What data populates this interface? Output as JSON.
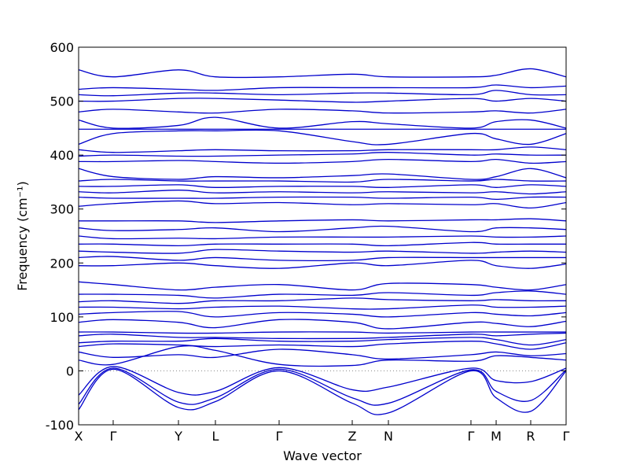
{
  "chart_data": {
    "type": "line",
    "title": "",
    "xlabel": "Wave vector",
    "ylabel": "Frequency (cm⁻¹)",
    "ylim": [
      -100,
      600
    ],
    "yticks": [
      -100,
      0,
      100,
      200,
      300,
      400,
      500,
      600
    ],
    "x_path_labels": [
      {
        "label": "X",
        "x": 0.0
      },
      {
        "label": "Γ",
        "x": 0.0709
      },
      {
        "label": "Y",
        "x": 0.2048
      },
      {
        "label": "L",
        "x": 0.2806
      },
      {
        "label": "Γ",
        "x": 0.4113
      },
      {
        "label": "Z",
        "x": 0.5613
      },
      {
        "label": "N",
        "x": 0.6355
      },
      {
        "label": "Γ",
        "x": 0.8048
      },
      {
        "label": "M",
        "x": 0.8565
      },
      {
        "label": "R",
        "x": 0.9274
      },
      {
        "label": "Γ",
        "x": 1.0
      }
    ],
    "grid": false,
    "zero_line": true,
    "line_color": "#0000cc",
    "zero_line_color": "#888888",
    "bands_x": [
      0.0,
      0.0709,
      0.2048,
      0.2806,
      0.4113,
      0.5613,
      0.6355,
      0.8048,
      0.8565,
      0.9274,
      1.0
    ],
    "series": [
      {
        "values": [
          -72,
          3,
          -68,
          -57,
          0,
          -60,
          -78,
          0,
          -50,
          -75,
          0
        ]
      },
      {
        "values": [
          -62,
          5,
          -58,
          -50,
          3,
          -50,
          -60,
          2,
          -38,
          -55,
          2
        ]
      },
      {
        "values": [
          -45,
          8,
          -40,
          -38,
          6,
          -35,
          -30,
          5,
          -18,
          -20,
          5
        ]
      },
      {
        "values": [
          20,
          12,
          45,
          38,
          12,
          10,
          20,
          18,
          28,
          25,
          20
        ]
      },
      {
        "values": [
          35,
          25,
          30,
          25,
          40,
          30,
          22,
          30,
          35,
          28,
          32
        ]
      },
      {
        "values": [
          45,
          50,
          48,
          45,
          48,
          45,
          50,
          55,
          50,
          40,
          52
        ]
      },
      {
        "values": [
          52,
          55,
          55,
          60,
          55,
          55,
          58,
          62,
          58,
          48,
          58
        ]
      },
      {
        "values": [
          65,
          68,
          62,
          62,
          60,
          60,
          62,
          68,
          65,
          68,
          70
        ]
      },
      {
        "values": [
          72,
          72,
          70,
          70,
          72,
          72,
          70,
          72,
          72,
          72,
          72
        ]
      },
      {
        "values": [
          90,
          95,
          90,
          80,
          95,
          90,
          78,
          90,
          88,
          82,
          92
        ]
      },
      {
        "values": [
          105,
          108,
          110,
          100,
          108,
          105,
          100,
          108,
          105,
          102,
          108
        ]
      },
      {
        "values": [
          118,
          118,
          115,
          118,
          120,
          115,
          115,
          122,
          118,
          118,
          120
        ]
      },
      {
        "values": [
          128,
          130,
          125,
          130,
          130,
          135,
          132,
          130,
          132,
          130,
          130
        ]
      },
      {
        "values": [
          142,
          142,
          140,
          135,
          142,
          140,
          145,
          140,
          145,
          148,
          142
        ]
      },
      {
        "values": [
          165,
          160,
          150,
          155,
          160,
          150,
          162,
          160,
          155,
          150,
          160
        ]
      },
      {
        "values": [
          195,
          195,
          200,
          195,
          190,
          200,
          195,
          205,
          195,
          190,
          198
        ]
      },
      {
        "values": [
          210,
          212,
          205,
          210,
          205,
          205,
          210,
          210,
          210,
          210,
          210
        ]
      },
      {
        "values": [
          222,
          220,
          218,
          225,
          222,
          220,
          222,
          218,
          220,
          222,
          220
        ]
      },
      {
        "values": [
          235,
          235,
          232,
          235,
          235,
          235,
          232,
          238,
          235,
          235,
          235
        ]
      },
      {
        "values": [
          250,
          245,
          246,
          245,
          248,
          248,
          248,
          250,
          248,
          248,
          250
        ]
      },
      {
        "values": [
          265,
          260,
          262,
          265,
          258,
          265,
          268,
          258,
          265,
          265,
          262
        ]
      },
      {
        "values": [
          278,
          278,
          278,
          275,
          278,
          280,
          278,
          280,
          280,
          282,
          278
        ]
      },
      {
        "values": [
          305,
          310,
          315,
          310,
          312,
          308,
          310,
          308,
          310,
          302,
          312
        ]
      },
      {
        "values": [
          322,
          320,
          320,
          320,
          322,
          322,
          320,
          322,
          318,
          322,
          322
        ]
      },
      {
        "values": [
          332,
          330,
          335,
          330,
          332,
          330,
          332,
          330,
          332,
          328,
          332
        ]
      },
      {
        "values": [
          342,
          342,
          345,
          340,
          342,
          342,
          340,
          345,
          340,
          345,
          342
        ]
      },
      {
        "values": [
          352,
          355,
          352,
          352,
          352,
          350,
          355,
          352,
          355,
          352,
          352
        ]
      },
      {
        "values": [
          375,
          360,
          355,
          360,
          358,
          362,
          365,
          355,
          360,
          375,
          358
        ]
      },
      {
        "values": [
          388,
          388,
          390,
          388,
          385,
          388,
          392,
          388,
          392,
          385,
          388
        ]
      },
      {
        "values": [
          398,
          400,
          398,
          398,
          400,
          402,
          405,
          400,
          402,
          400,
          400
        ]
      },
      {
        "values": [
          410,
          405,
          408,
          410,
          408,
          408,
          410,
          410,
          410,
          415,
          410
        ]
      },
      {
        "values": [
          420,
          440,
          445,
          445,
          445,
          425,
          420,
          440,
          430,
          420,
          440
        ]
      },
      {
        "values": [
          448,
          448,
          448,
          448,
          448,
          448,
          448,
          448,
          448,
          448,
          448
        ]
      },
      {
        "values": [
          465,
          450,
          455,
          470,
          450,
          462,
          458,
          450,
          462,
          465,
          450
        ]
      },
      {
        "values": [
          480,
          485,
          480,
          478,
          485,
          482,
          478,
          480,
          482,
          478,
          485
        ]
      },
      {
        "values": [
          500,
          500,
          505,
          505,
          502,
          498,
          500,
          505,
          500,
          505,
          500
        ]
      },
      {
        "values": [
          512,
          510,
          515,
          515,
          512,
          515,
          515,
          512,
          520,
          512,
          512
        ]
      },
      {
        "values": [
          522,
          525,
          522,
          520,
          525,
          525,
          525,
          525,
          530,
          525,
          528
        ]
      },
      {
        "values": [
          558,
          545,
          558,
          545,
          545,
          550,
          545,
          545,
          548,
          560,
          545
        ]
      }
    ]
  }
}
